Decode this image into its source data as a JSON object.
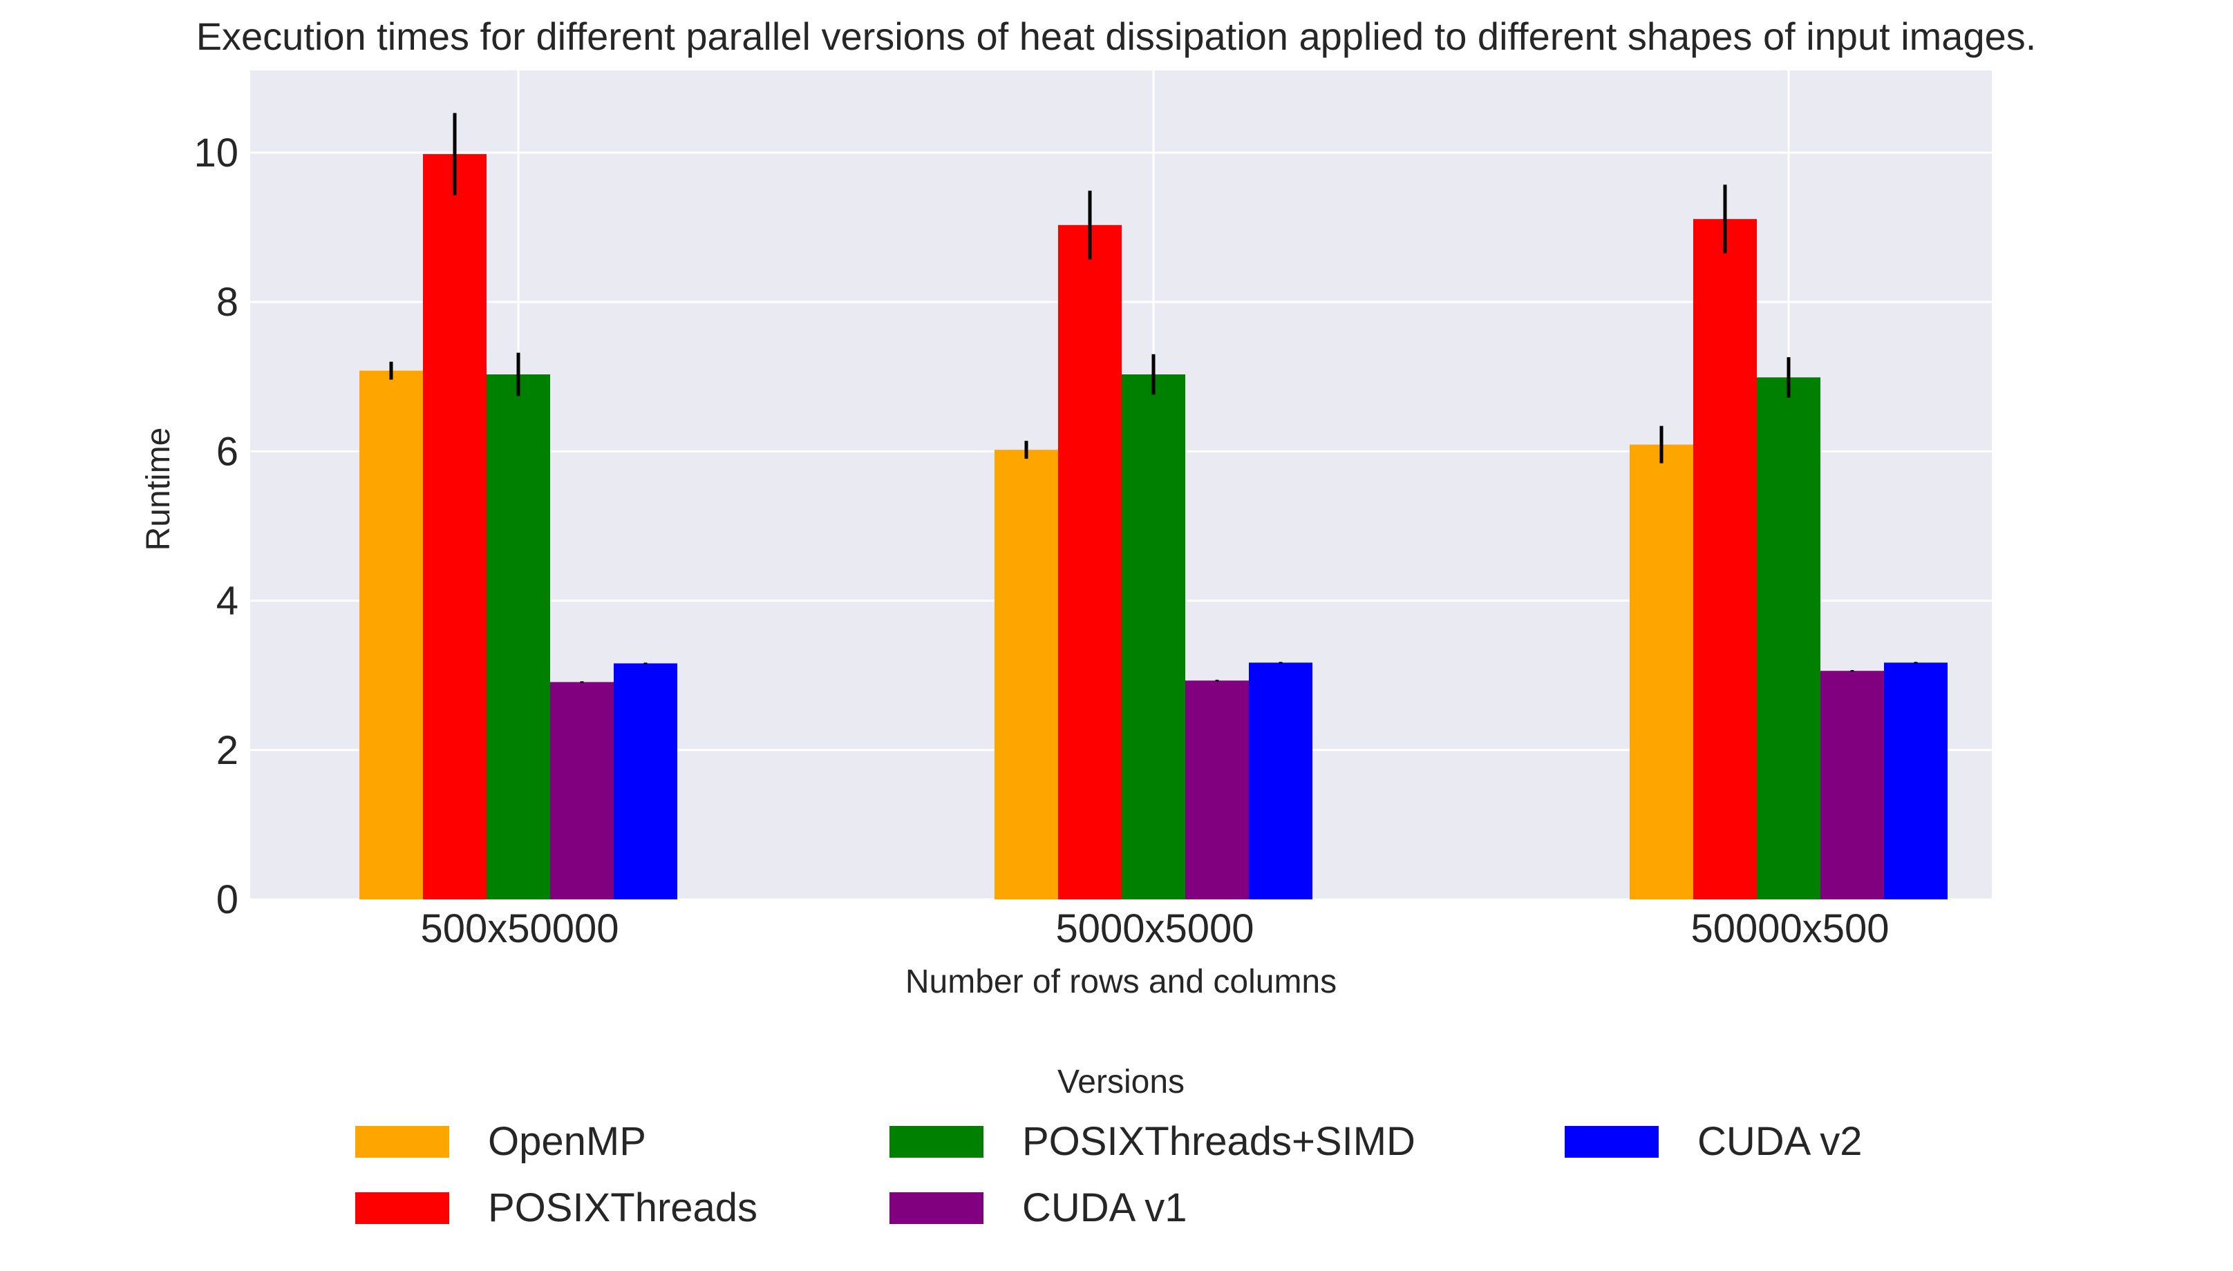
{
  "chart_data": {
    "type": "bar",
    "title": "Execution times for different parallel versions of heat dissipation applied to different shapes of input images.",
    "xlabel": "Number of rows and columns",
    "ylabel": "Runtime",
    "categories": [
      "500x50000",
      "5000x5000",
      "50000x500"
    ],
    "ylim": [
      0,
      11.1
    ],
    "yticks": [
      0,
      2,
      4,
      6,
      8,
      10
    ],
    "grid": true,
    "legend": {
      "title": "Versions",
      "placement": "bottom-center"
    },
    "series": [
      {
        "name": "OpenMP",
        "color": "#FFA500",
        "values": [
          7.08,
          6.02,
          6.09
        ],
        "errors": [
          0.12,
          0.12,
          0.25
        ]
      },
      {
        "name": "POSIXThreads",
        "color": "#FF0000",
        "values": [
          9.98,
          9.03,
          9.11
        ],
        "errors": [
          0.55,
          0.46,
          0.46
        ]
      },
      {
        "name": "POSIXThreads+SIMD",
        "color": "#008000",
        "values": [
          7.03,
          7.03,
          6.99
        ],
        "errors": [
          0.29,
          0.27,
          0.27
        ]
      },
      {
        "name": "CUDA v1",
        "color": "#800080",
        "values": [
          2.91,
          2.93,
          3.06
        ],
        "errors": [
          0.01,
          0.01,
          0.01
        ]
      },
      {
        "name": "CUDA v2",
        "color": "#0000FF",
        "values": [
          3.16,
          3.17,
          3.17
        ],
        "errors": [
          0.01,
          0.01,
          0.01
        ]
      }
    ]
  }
}
